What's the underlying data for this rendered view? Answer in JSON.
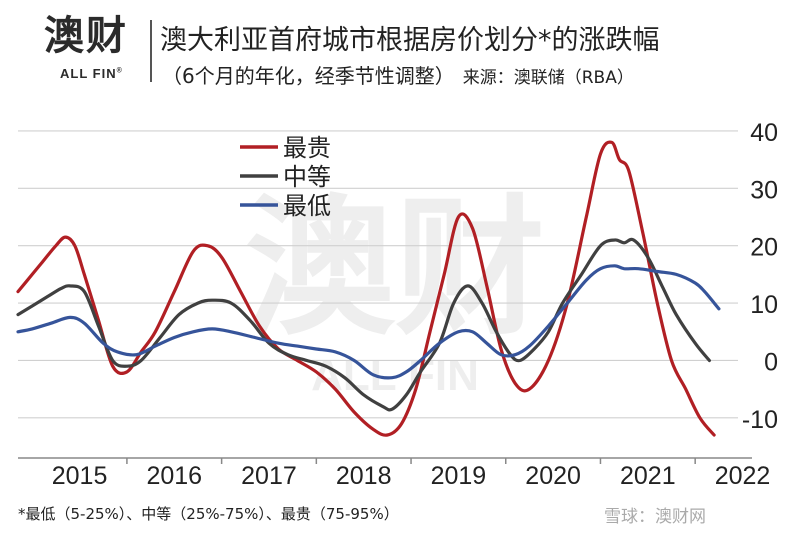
{
  "header": {
    "logo_text": "澳财",
    "logo_sub": "ALL FIN",
    "logo_reg": "®",
    "title": "澳大利亚首府城市根据房价划分*的涨跌幅",
    "subtitle": "（6个月的年化，经季节性调整）",
    "source": "来源：澳联储（RBA）"
  },
  "footnote": "*最低（5-25%）、中等（25%-75%）、最贵（75-95%）",
  "watermark": {
    "center_text": "澳财",
    "center_sub": "ALL FIN",
    "corner_text": "雪球：澳财网"
  },
  "colors": {
    "most_expensive": "#b11f24",
    "middle": "#404040",
    "cheapest": "#36549a"
  },
  "chart_data": {
    "type": "line",
    "title": "澳大利亚首府城市根据房价划分*的涨跌幅",
    "xlabel": "",
    "ylabel": "",
    "x_ticks": [
      "2015",
      "2016",
      "2017",
      "2018",
      "2019",
      "2020",
      "2021",
      "2022"
    ],
    "y_ticks": [
      "40",
      "30",
      "20",
      "10",
      "0",
      "-10"
    ],
    "ylim": [
      -17,
      44
    ],
    "xlim": [
      2014.85,
      2022.6
    ],
    "y_axis_side": "right",
    "grid": "horizontal",
    "legend_position": "top-left",
    "series": [
      {
        "name": "最贵",
        "color": "#b11f24",
        "points": [
          [
            2014.85,
            12
          ],
          [
            2015.0,
            15
          ],
          [
            2015.1,
            17
          ],
          [
            2015.25,
            20
          ],
          [
            2015.35,
            21.5
          ],
          [
            2015.45,
            20
          ],
          [
            2015.55,
            15
          ],
          [
            2015.7,
            7
          ],
          [
            2015.85,
            -1
          ],
          [
            2016.0,
            -2
          ],
          [
            2016.15,
            1.5
          ],
          [
            2016.3,
            5
          ],
          [
            2016.5,
            12
          ],
          [
            2016.7,
            19
          ],
          [
            2016.85,
            20
          ],
          [
            2017.0,
            18
          ],
          [
            2017.2,
            12
          ],
          [
            2017.4,
            6
          ],
          [
            2017.6,
            2
          ],
          [
            2017.8,
            0
          ],
          [
            2018.0,
            -2
          ],
          [
            2018.2,
            -5
          ],
          [
            2018.4,
            -9
          ],
          [
            2018.6,
            -12
          ],
          [
            2018.75,
            -13
          ],
          [
            2018.9,
            -11
          ],
          [
            2019.05,
            -5
          ],
          [
            2019.2,
            5
          ],
          [
            2019.35,
            15
          ],
          [
            2019.5,
            25
          ],
          [
            2019.65,
            23
          ],
          [
            2019.8,
            13
          ],
          [
            2019.95,
            2
          ],
          [
            2020.1,
            -4
          ],
          [
            2020.25,
            -5
          ],
          [
            2020.45,
            0
          ],
          [
            2020.65,
            10
          ],
          [
            2020.85,
            25
          ],
          [
            2021.0,
            36
          ],
          [
            2021.12,
            38
          ],
          [
            2021.2,
            35
          ],
          [
            2021.3,
            33
          ],
          [
            2021.45,
            22
          ],
          [
            2021.6,
            10
          ],
          [
            2021.75,
            0
          ],
          [
            2021.9,
            -5
          ],
          [
            2022.05,
            -10
          ],
          [
            2022.2,
            -13
          ]
        ]
      },
      {
        "name": "中等",
        "color": "#404040",
        "points": [
          [
            2014.85,
            8
          ],
          [
            2015.0,
            9.5
          ],
          [
            2015.15,
            11
          ],
          [
            2015.3,
            12.5
          ],
          [
            2015.4,
            13
          ],
          [
            2015.55,
            12
          ],
          [
            2015.7,
            6
          ],
          [
            2015.85,
            0
          ],
          [
            2016.0,
            -1
          ],
          [
            2016.15,
            0
          ],
          [
            2016.35,
            4
          ],
          [
            2016.55,
            8
          ],
          [
            2016.75,
            10
          ],
          [
            2016.9,
            10.5
          ],
          [
            2017.1,
            10
          ],
          [
            2017.3,
            7
          ],
          [
            2017.5,
            3
          ],
          [
            2017.7,
            1
          ],
          [
            2017.9,
            0
          ],
          [
            2018.1,
            -1
          ],
          [
            2018.3,
            -3
          ],
          [
            2018.5,
            -6
          ],
          [
            2018.7,
            -8
          ],
          [
            2018.8,
            -8.5
          ],
          [
            2018.95,
            -6
          ],
          [
            2019.1,
            -2
          ],
          [
            2019.3,
            3
          ],
          [
            2019.45,
            10
          ],
          [
            2019.6,
            13
          ],
          [
            2019.75,
            10
          ],
          [
            2019.9,
            5
          ],
          [
            2020.05,
            1
          ],
          [
            2020.15,
            0
          ],
          [
            2020.3,
            2
          ],
          [
            2020.45,
            5
          ],
          [
            2020.6,
            10
          ],
          [
            2020.8,
            15
          ],
          [
            2021.0,
            20
          ],
          [
            2021.15,
            21
          ],
          [
            2021.25,
            20.5
          ],
          [
            2021.35,
            21
          ],
          [
            2021.5,
            18
          ],
          [
            2021.65,
            13
          ],
          [
            2021.8,
            8
          ],
          [
            2022.0,
            3
          ],
          [
            2022.15,
            0
          ]
        ]
      },
      {
        "name": "最低",
        "color": "#36549a",
        "points": [
          [
            2014.85,
            5
          ],
          [
            2015.0,
            5.5
          ],
          [
            2015.2,
            6.5
          ],
          [
            2015.4,
            7.5
          ],
          [
            2015.55,
            6.5
          ],
          [
            2015.75,
            3
          ],
          [
            2015.9,
            1.5
          ],
          [
            2016.1,
            1
          ],
          [
            2016.3,
            2.5
          ],
          [
            2016.5,
            4
          ],
          [
            2016.7,
            5
          ],
          [
            2016.9,
            5.5
          ],
          [
            2017.1,
            5
          ],
          [
            2017.35,
            4
          ],
          [
            2017.6,
            3
          ],
          [
            2017.8,
            2.5
          ],
          [
            2018.0,
            2
          ],
          [
            2018.2,
            1.5
          ],
          [
            2018.4,
            0
          ],
          [
            2018.6,
            -2.5
          ],
          [
            2018.8,
            -3
          ],
          [
            2018.95,
            -2
          ],
          [
            2019.1,
            0
          ],
          [
            2019.3,
            3
          ],
          [
            2019.5,
            5
          ],
          [
            2019.65,
            5
          ],
          [
            2019.8,
            3
          ],
          [
            2019.95,
            1
          ],
          [
            2020.1,
            1
          ],
          [
            2020.25,
            2.5
          ],
          [
            2020.45,
            6
          ],
          [
            2020.65,
            10
          ],
          [
            2020.85,
            14
          ],
          [
            2021.0,
            16
          ],
          [
            2021.15,
            16.5
          ],
          [
            2021.25,
            16
          ],
          [
            2021.4,
            16
          ],
          [
            2021.6,
            15.5
          ],
          [
            2021.8,
            15
          ],
          [
            2022.0,
            13.5
          ],
          [
            2022.1,
            12
          ],
          [
            2022.25,
            9
          ]
        ]
      }
    ]
  }
}
